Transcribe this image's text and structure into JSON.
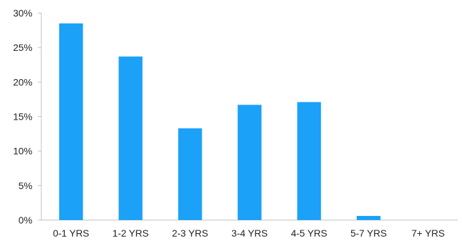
{
  "chart_data": {
    "type": "bar",
    "title": "",
    "xlabel": "",
    "ylabel": "",
    "categories": [
      "0-1 YRS",
      "1-2 YRS",
      "2-3 YRS",
      "3-4 YRS",
      "4-5 YRS",
      "5-7 YRS",
      "7+ YRS"
    ],
    "values": [
      28.5,
      23.7,
      13.3,
      16.7,
      17.1,
      0.6,
      0
    ],
    "ylim": [
      0,
      30
    ],
    "yticks": [
      0,
      5,
      10,
      15,
      20,
      25,
      30
    ],
    "ytick_labels": [
      "0%",
      "5%",
      "10%",
      "15%",
      "20%",
      "25%",
      "30%"
    ],
    "grid": false,
    "legend": "none",
    "bar_color": "#1BA1F7",
    "axis_color": "#BFBFBF"
  }
}
